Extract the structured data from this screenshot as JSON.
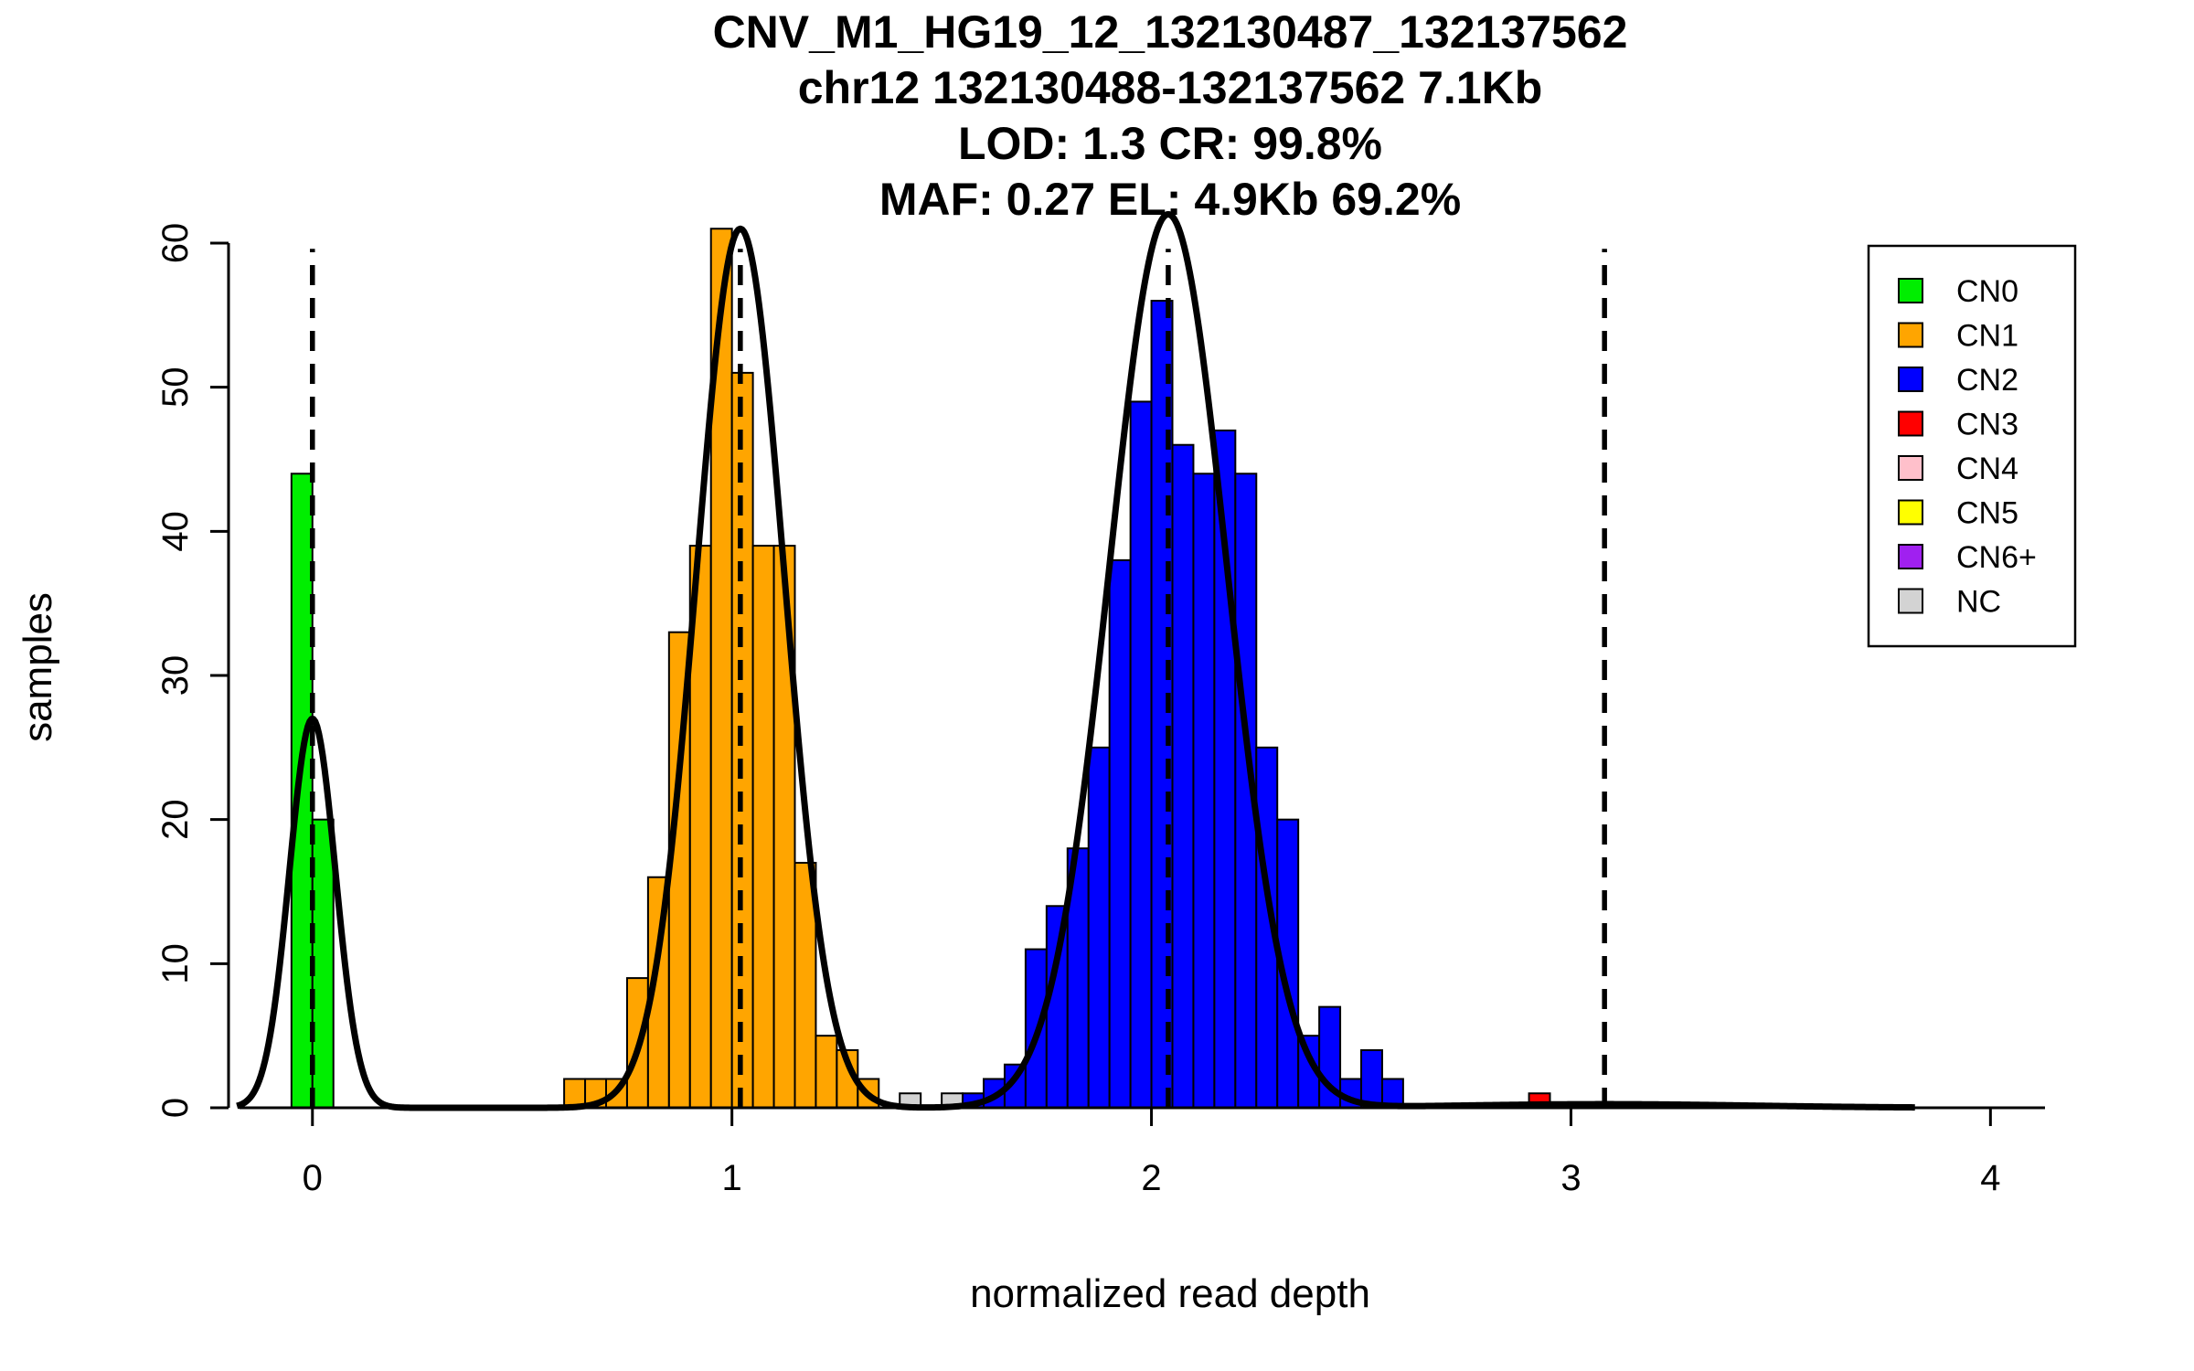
{
  "chart_data": {
    "type": "histogram",
    "title_lines": [
      "CNV_M1_HG19_12_132130487_132137562",
      "chr12 132130488-132137562 7.1Kb",
      "LOD: 1.3 CR: 99.8%",
      "MAF: 0.27 EL: 4.9Kb 69.2%"
    ],
    "xlabel": "normalized read depth",
    "ylabel": "samples",
    "xlim": [
      -0.2,
      4.13
    ],
    "ylim": [
      0,
      60
    ],
    "xticks": [
      0,
      1,
      2,
      3,
      4
    ],
    "yticks": [
      0,
      10,
      20,
      30,
      40,
      50,
      60
    ],
    "bin_width": 0.05,
    "legend": {
      "position": "top-right",
      "entries": [
        {
          "label": "CN0",
          "color": "#00ee00"
        },
        {
          "label": "CN1",
          "color": "#ffa500"
        },
        {
          "label": "CN2",
          "color": "#0000ff"
        },
        {
          "label": "CN3",
          "color": "#ff0000"
        },
        {
          "label": "CN4",
          "color": "#ffc0cb"
        },
        {
          "label": "CN5",
          "color": "#ffff00"
        },
        {
          "label": "CN6+",
          "color": "#a020f0"
        },
        {
          "label": "NC",
          "color": "#d3d3d3"
        }
      ]
    },
    "bins": [
      {
        "x": -0.025,
        "count": 44,
        "class": "CN0"
      },
      {
        "x": 0.025,
        "count": 20,
        "class": "CN0"
      },
      {
        "x": 0.625,
        "count": 2,
        "class": "CN1"
      },
      {
        "x": 0.675,
        "count": 2,
        "class": "CN1"
      },
      {
        "x": 0.725,
        "count": 2,
        "class": "CN1"
      },
      {
        "x": 0.775,
        "count": 9,
        "class": "CN1"
      },
      {
        "x": 0.825,
        "count": 16,
        "class": "CN1"
      },
      {
        "x": 0.875,
        "count": 33,
        "class": "CN1"
      },
      {
        "x": 0.925,
        "count": 39,
        "class": "CN1"
      },
      {
        "x": 0.975,
        "count": 61,
        "class": "CN1"
      },
      {
        "x": 1.025,
        "count": 51,
        "class": "CN1"
      },
      {
        "x": 1.075,
        "count": 39,
        "class": "CN1"
      },
      {
        "x": 1.125,
        "count": 39,
        "class": "CN1"
      },
      {
        "x": 1.175,
        "count": 17,
        "class": "CN1"
      },
      {
        "x": 1.225,
        "count": 5,
        "class": "CN1"
      },
      {
        "x": 1.275,
        "count": 4,
        "class": "CN1"
      },
      {
        "x": 1.325,
        "count": 2,
        "class": "CN1"
      },
      {
        "x": 1.425,
        "count": 1,
        "class": "NC"
      },
      {
        "x": 1.525,
        "count": 1,
        "class": "NC"
      },
      {
        "x": 1.575,
        "count": 1,
        "class": "CN2"
      },
      {
        "x": 1.625,
        "count": 2,
        "class": "CN2"
      },
      {
        "x": 1.675,
        "count": 3,
        "class": "CN2"
      },
      {
        "x": 1.725,
        "count": 11,
        "class": "CN2"
      },
      {
        "x": 1.775,
        "count": 14,
        "class": "CN2"
      },
      {
        "x": 1.825,
        "count": 18,
        "class": "CN2"
      },
      {
        "x": 1.875,
        "count": 25,
        "class": "CN2"
      },
      {
        "x": 1.925,
        "count": 38,
        "class": "CN2"
      },
      {
        "x": 1.975,
        "count": 49,
        "class": "CN2"
      },
      {
        "x": 2.025,
        "count": 56,
        "class": "CN2"
      },
      {
        "x": 2.075,
        "count": 46,
        "class": "CN2"
      },
      {
        "x": 2.125,
        "count": 44,
        "class": "CN2"
      },
      {
        "x": 2.175,
        "count": 47,
        "class": "CN2"
      },
      {
        "x": 2.225,
        "count": 44,
        "class": "CN2"
      },
      {
        "x": 2.275,
        "count": 25,
        "class": "CN2"
      },
      {
        "x": 2.325,
        "count": 20,
        "class": "CN2"
      },
      {
        "x": 2.375,
        "count": 5,
        "class": "CN2"
      },
      {
        "x": 2.425,
        "count": 7,
        "class": "CN2"
      },
      {
        "x": 2.475,
        "count": 2,
        "class": "CN2"
      },
      {
        "x": 2.525,
        "count": 4,
        "class": "CN2"
      },
      {
        "x": 2.575,
        "count": 2,
        "class": "CN2"
      },
      {
        "x": 2.925,
        "count": 1,
        "class": "CN3"
      }
    ],
    "fit_components": [
      {
        "mean": 0.0,
        "sd": 0.055,
        "peak": 27
      },
      {
        "mean": 1.02,
        "sd": 0.105,
        "peak": 61
      },
      {
        "mean": 2.04,
        "sd": 0.14,
        "peak": 62
      },
      {
        "mean": 3.08,
        "sd": 0.35,
        "peak": 0.25
      }
    ],
    "fit_range": [
      -0.18,
      3.82
    ],
    "dashed_lines": [
      {
        "x": 0.0,
        "top": 60
      },
      {
        "x": 1.02,
        "top": 60
      },
      {
        "x": 2.04,
        "top": 60
      },
      {
        "x": 3.08,
        "top": 60
      }
    ]
  }
}
